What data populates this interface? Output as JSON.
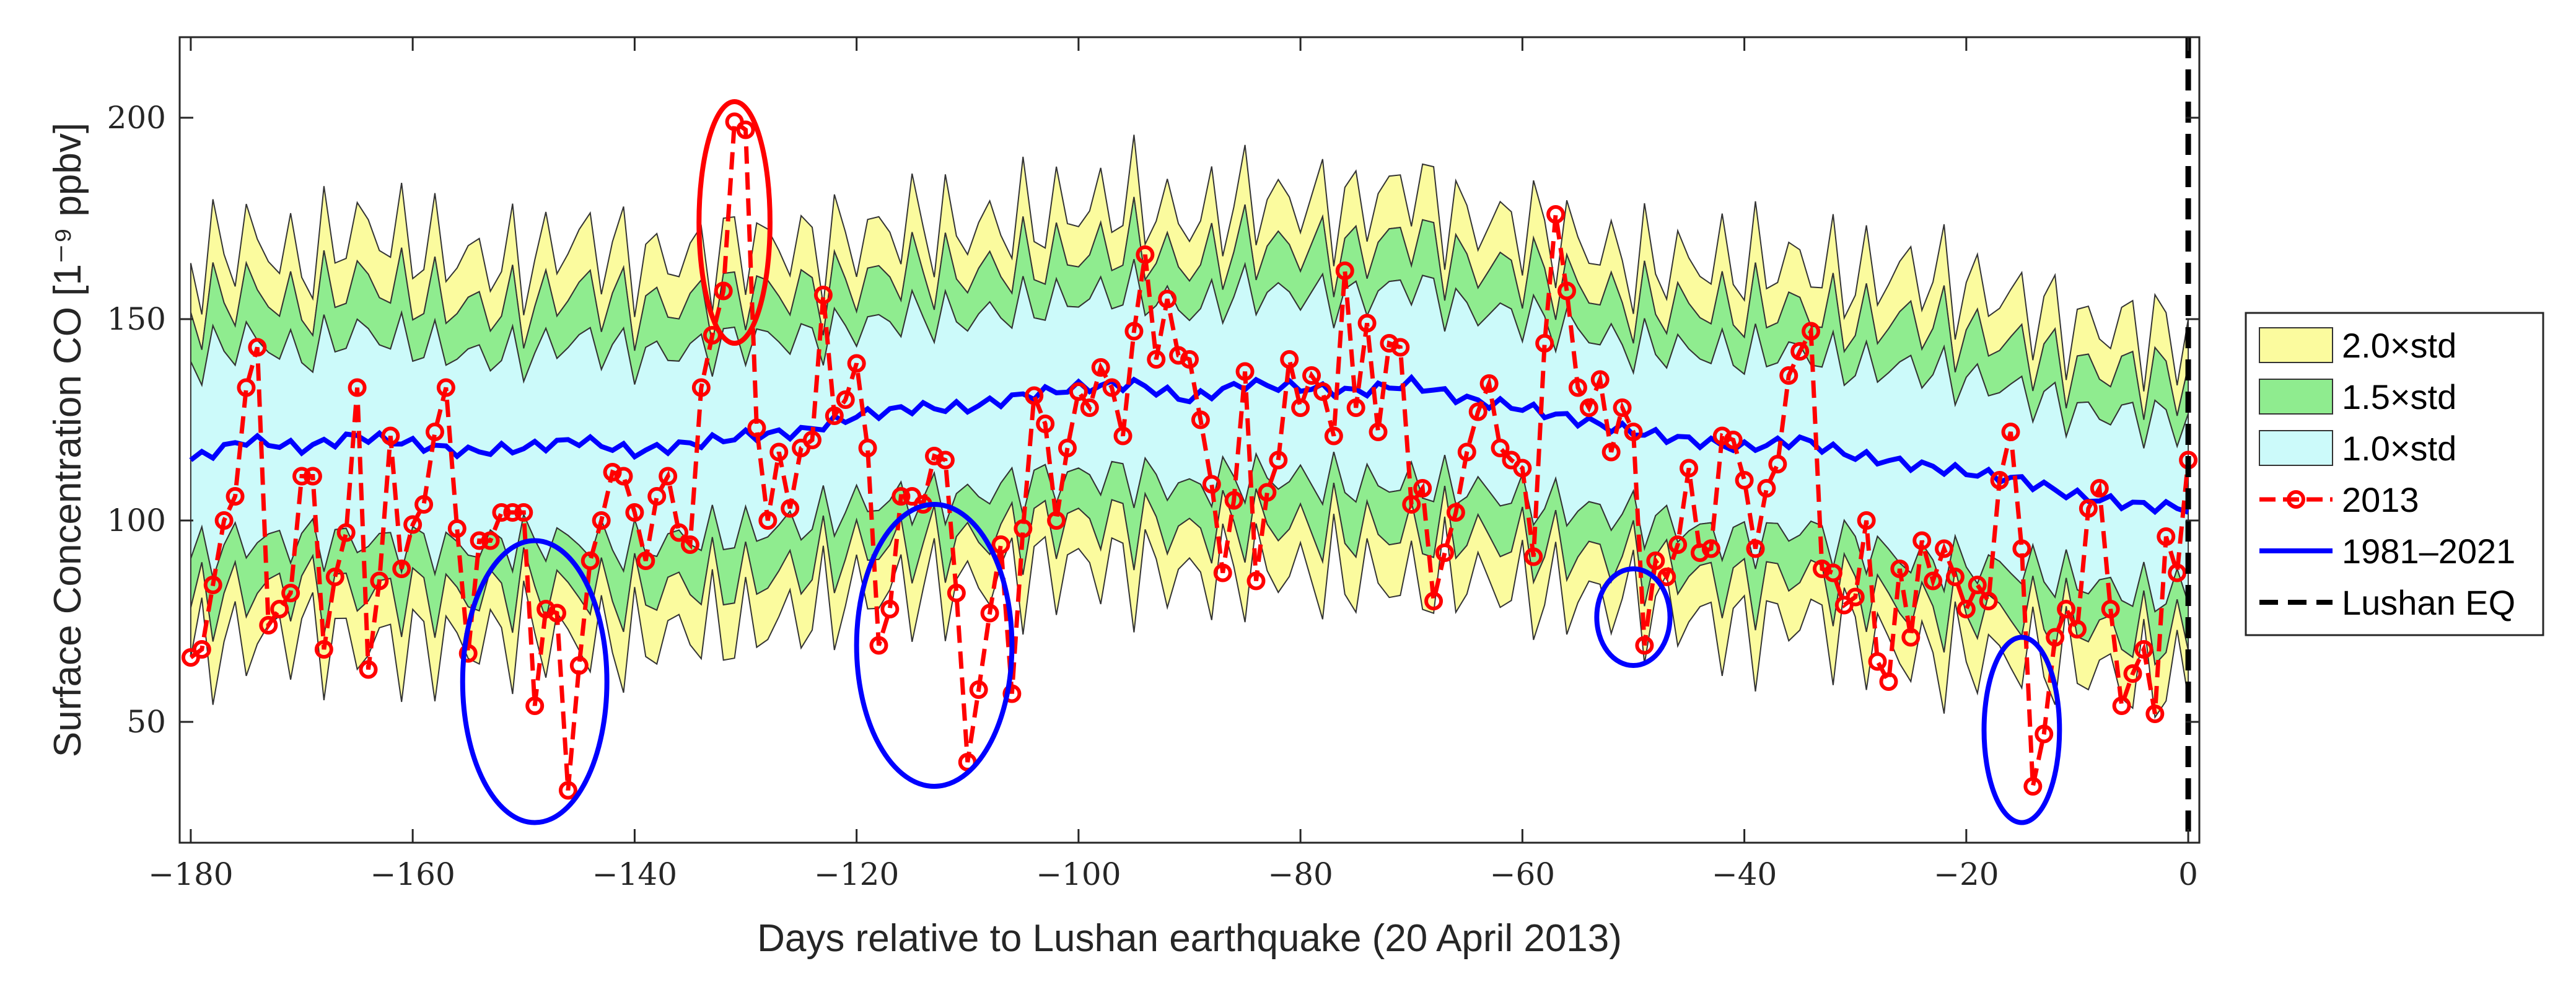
{
  "chart_data": {
    "type": "line",
    "title": "",
    "xlabel": "Days relative to Lushan earthquake (20 April 2013)",
    "ylabel": "Surface Concentration CO [1⁻⁹ ppbv]",
    "xlim": [
      -181,
      1
    ],
    "ylim": [
      20,
      220
    ],
    "xticks": [
      -180,
      -160,
      -140,
      -120,
      -100,
      -80,
      -60,
      -40,
      -20,
      0
    ],
    "yticks": [
      50,
      100,
      150,
      200
    ],
    "grid": false,
    "legend_position": "outside-right",
    "colors": {
      "band_2std": "#fbfb9e",
      "band_1_5std": "#8fec8f",
      "band_1std": "#ccfafa",
      "series_2013": "#ff0000",
      "series_mean": "#0000ff",
      "eq_line": "#000000",
      "ellipse_high": "#ff0000",
      "ellipse_low": "#0000ff"
    },
    "legend": [
      {
        "label": "2.0×std",
        "kind": "band",
        "color": "#fbfb9e"
      },
      {
        "label": "1.5×std",
        "kind": "band",
        "color": "#8fec8f"
      },
      {
        "label": "1.0×std",
        "kind": "band",
        "color": "#ccfafa"
      },
      {
        "label": "2013",
        "kind": "marker-line",
        "color": "#ff0000"
      },
      {
        "label": "1981–2021",
        "kind": "line",
        "color": "#0000ff"
      },
      {
        "label": "Lushan EQ",
        "kind": "dashed",
        "color": "#000000"
      }
    ],
    "mean_1981_2021": {
      "x": [
        -180,
        -175,
        -170,
        -165,
        -160,
        -155,
        -150,
        -145,
        -140,
        -135,
        -130,
        -125,
        -120,
        -115,
        -110,
        -105,
        -100,
        -95,
        -90,
        -85,
        -80,
        -75,
        -70,
        -65,
        -60,
        -55,
        -50,
        -45,
        -40,
        -35,
        -30,
        -25,
        -20,
        -15,
        -10,
        -5,
        0
      ],
      "y": [
        115,
        120,
        118,
        121,
        119,
        117,
        118,
        120,
        117,
        119,
        121,
        122,
        126,
        128,
        128,
        131,
        133,
        134,
        130,
        134,
        133,
        132,
        134,
        130,
        128,
        125,
        122,
        120,
        118,
        120,
        116,
        114,
        112,
        110,
        106,
        104,
        103
      ]
    },
    "std_1981_2021": {
      "x": [
        -180,
        -175,
        -170,
        -165,
        -160,
        -155,
        -150,
        -145,
        -140,
        -135,
        -130,
        -125,
        -120,
        -115,
        -110,
        -105,
        -100,
        -95,
        -90,
        -85,
        -80,
        -75,
        -70,
        -65,
        -60,
        -55,
        -50,
        -45,
        -40,
        -35,
        -30,
        -25,
        -20,
        -15,
        -10,
        -5,
        0
      ],
      "y": [
        24,
        25,
        23,
        26,
        25,
        24,
        23,
        25,
        24,
        23,
        24,
        23,
        22,
        23,
        22,
        22,
        22,
        23,
        22,
        23,
        23,
        23,
        25,
        22,
        23,
        22,
        21,
        22,
        23,
        22,
        22,
        24,
        23,
        22,
        21,
        22,
        21
      ]
    },
    "series_2013": {
      "x": [
        -180,
        -179,
        -178,
        -177,
        -176,
        -175,
        -174,
        -173,
        -172,
        -171,
        -170,
        -169,
        -168,
        -167,
        -166,
        -165,
        -164,
        -163,
        -162,
        -161,
        -160,
        -159,
        -158,
        -157,
        -156,
        -155,
        -154,
        -153,
        -152,
        -151,
        -150,
        -149,
        -148,
        -147,
        -146,
        -145,
        -144,
        -143,
        -142,
        -141,
        -140,
        -139,
        -138,
        -137,
        -136,
        -135,
        -134,
        -133,
        -132,
        -131,
        -130,
        -129,
        -128,
        -127,
        -126,
        -125,
        -124,
        -123,
        -122,
        -121,
        -120,
        -119,
        -118,
        -117,
        -116,
        -115,
        -114,
        -113,
        -112,
        -111,
        -110,
        -109,
        -108,
        -107,
        -106,
        -105,
        -104,
        -103,
        -102,
        -101,
        -100,
        -99,
        -98,
        -97,
        -96,
        -95,
        -94,
        -93,
        -92,
        -91,
        -90,
        -89,
        -88,
        -87,
        -86,
        -85,
        -84,
        -83,
        -82,
        -81,
        -80,
        -79,
        -78,
        -77,
        -76,
        -75,
        -74,
        -73,
        -72,
        -71,
        -70,
        -69,
        -68,
        -67,
        -66,
        -65,
        -64,
        -63,
        -62,
        -61,
        -60,
        -59,
        -58,
        -57,
        -56,
        -55,
        -54,
        -53,
        -52,
        -51,
        -50,
        -49,
        -48,
        -47,
        -46,
        -45,
        -44,
        -43,
        -42,
        -41,
        -40,
        -39,
        -38,
        -37,
        -36,
        -35,
        -34,
        -33,
        -32,
        -31,
        -30,
        -29,
        -28,
        -27,
        -26,
        -25,
        -24,
        -23,
        -22,
        -21,
        -20,
        -19,
        -18,
        -17,
        -16,
        -15,
        -14,
        -13,
        -12,
        -11,
        -10,
        -9,
        -8,
        -7,
        -6,
        -5,
        -4,
        -3,
        -2,
        -1,
        0
      ],
      "y": [
        66,
        68,
        84,
        100,
        106,
        133,
        143,
        74,
        78,
        82,
        111,
        111,
        68,
        86,
        97,
        133,
        63,
        85,
        121,
        88,
        99,
        104,
        122,
        133,
        98,
        67,
        95,
        95,
        102,
        102,
        102,
        54,
        78,
        77,
        33,
        64,
        90,
        100,
        112,
        111,
        102,
        90,
        106,
        111,
        97,
        94,
        133,
        146,
        157,
        199,
        197,
        123,
        100,
        117,
        103,
        118,
        120,
        156,
        126,
        130,
        139,
        118,
        69,
        78,
        106,
        106,
        104,
        116,
        115,
        82,
        40,
        58,
        77,
        94,
        57,
        98,
        131,
        124,
        100,
        118,
        132,
        128,
        138,
        133,
        121,
        147,
        166,
        140,
        155,
        141,
        140,
        125,
        109,
        87,
        105,
        137,
        85,
        107,
        115,
        140,
        128,
        136,
        132,
        121,
        162,
        128,
        149,
        122,
        144,
        143,
        104,
        108,
        80,
        92,
        102,
        117,
        127,
        134,
        118,
        115,
        113,
        91,
        144,
        176,
        157,
        133,
        128,
        135,
        117,
        128,
        122,
        69,
        90,
        86,
        94,
        113,
        92,
        93,
        121,
        120,
        110,
        93,
        108,
        114,
        136,
        142,
        147,
        88,
        87,
        79,
        81,
        100,
        65,
        60,
        88,
        71,
        95,
        85,
        93,
        86,
        78,
        84,
        80,
        110,
        122,
        93,
        34,
        47,
        71,
        78,
        73,
        103,
        108,
        78,
        54,
        62,
        68,
        52,
        96,
        87,
        115
      ]
    },
    "event_day": 0,
    "annotations": {
      "high_ellipses": [
        {
          "cx": -131,
          "cy": 174,
          "rx": 3.2,
          "ry": 30
        }
      ],
      "low_ellipses": [
        {
          "cx": -149,
          "cy": 60,
          "rx": 6.5,
          "ry": 35
        },
        {
          "cx": -113,
          "cy": 69,
          "rx": 7,
          "ry": 35
        },
        {
          "cx": -50,
          "cy": 76,
          "rx": 3.3,
          "ry": 12
        },
        {
          "cx": -15,
          "cy": 48,
          "rx": 3.4,
          "ry": 23
        }
      ]
    }
  }
}
